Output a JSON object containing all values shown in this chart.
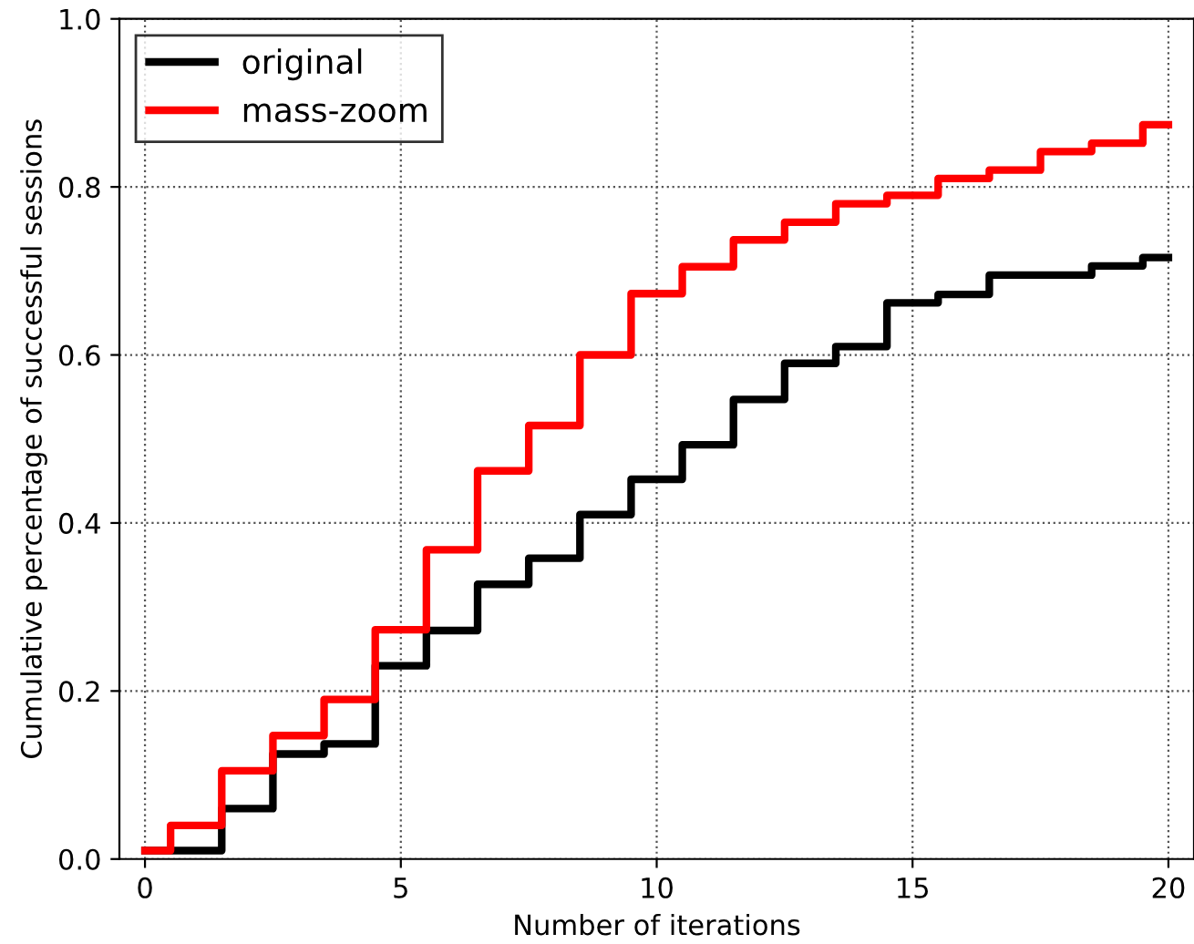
{
  "chart_data": {
    "type": "step",
    "xlabel": "Number of iterations",
    "ylabel": "Cumulative percentage of successful sessions",
    "x": [
      0,
      1,
      2,
      3,
      4,
      5,
      6,
      7,
      8,
      9,
      10,
      11,
      12,
      13,
      14,
      15,
      16,
      17,
      18,
      19,
      20
    ],
    "series": [
      {
        "name": "original",
        "color": "#000000",
        "values": [
          0.01,
          0.01,
          0.06,
          0.125,
          0.137,
          0.23,
          0.272,
          0.327,
          0.358,
          0.41,
          0.452,
          0.493,
          0.547,
          0.59,
          0.61,
          0.662,
          0.672,
          0.695,
          0.695,
          0.706,
          0.716
        ]
      },
      {
        "name": "mass-zoom",
        "color": "#ff0000",
        "values": [
          0.01,
          0.04,
          0.105,
          0.147,
          0.19,
          0.273,
          0.368,
          0.462,
          0.516,
          0.6,
          0.673,
          0.705,
          0.737,
          0.758,
          0.78,
          0.79,
          0.81,
          0.82,
          0.842,
          0.852,
          0.874
        ]
      }
    ],
    "xlim": [
      -0.5,
      20.5
    ],
    "ylim": [
      0,
      1
    ],
    "xticks": [
      0,
      5,
      10,
      15,
      20
    ],
    "yticks": [
      {
        "value": 0,
        "label": "0.0"
      },
      0.2,
      0.4,
      0.6,
      0.8,
      {
        "value": 1,
        "label": "1.0"
      }
    ],
    "grid": true,
    "legend": "top left",
    "line_style": "solid"
  }
}
